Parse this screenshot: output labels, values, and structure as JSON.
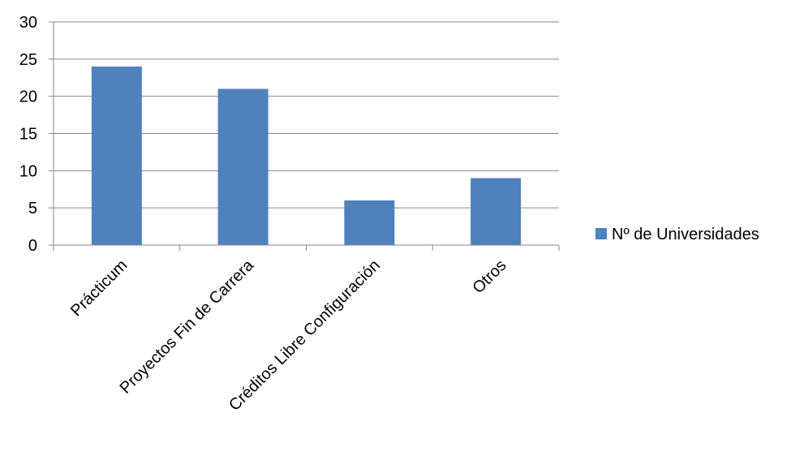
{
  "chart_data": {
    "type": "bar",
    "categories": [
      "Prácticum",
      "Proyectos Fin de Carrera",
      "Créditos Libre Configuración",
      "Otros"
    ],
    "series": [
      {
        "name": "Nº de Universidades",
        "values": [
          24,
          21,
          6,
          9
        ],
        "color": "#4f81bd"
      }
    ],
    "ylim": [
      0,
      30
    ],
    "yticks": [
      0,
      5,
      10,
      15,
      20,
      25,
      30
    ],
    "grid": true,
    "legend": "right",
    "gridline_color": "#868686",
    "axis_color": "#868686"
  }
}
